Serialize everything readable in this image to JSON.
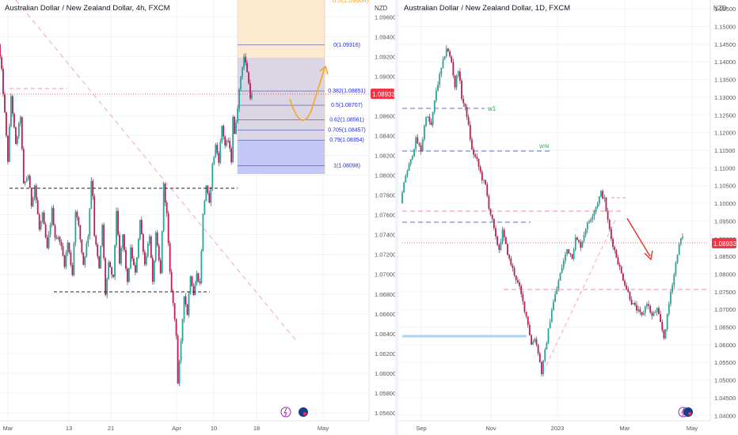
{
  "colors": {
    "up": "#26a69a",
    "down": "#c2185b",
    "wick": "#333333",
    "price_line": "#f23645",
    "fib_line": "#3f51b5",
    "fib_label": "#1e2bd0",
    "orange": "#f5a623",
    "green_label": "#26a65b",
    "zone_blue": "#b9befa",
    "zone_gray": "#d6d0dd",
    "zone_orange": "#fde9cf",
    "red_arrow": "#e53935"
  },
  "left_panel": {
    "title": "Australian Dollar / New Zealand Dollar, 4h, FXCM",
    "currency": "NZD",
    "price_tag": "1.08933",
    "y_ticks": [
      "1.09600",
      "1.09400",
      "1.09200",
      "1.09000",
      "1.08800",
      "1.08600",
      "1.08400",
      "1.08200",
      "1.08000",
      "1.07800",
      "1.07600",
      "1.07400",
      "1.07200",
      "1.07000",
      "1.06800",
      "1.06600",
      "1.06400",
      "1.06200",
      "1.06000",
      "1.05800",
      "1.05600"
    ],
    "x_ticks": [
      "Mar",
      "13",
      "21",
      "Apr",
      "10",
      "18",
      "May"
    ],
    "fib_labels": [
      "0(1.09316)",
      "0.382(1.08851)",
      "0.5(1.08707)",
      "0.62(1.08561)",
      "0.705(1.08457)",
      "0.79(1.08354)",
      "1(1.08098)"
    ],
    "icons": [
      "lightning-icon",
      "flag-icon"
    ]
  },
  "right_panel": {
    "title": "Australian Dollar / New Zealand Dollar, 1D, FXCM",
    "currency": "NZD",
    "price_tag": "1.08933",
    "y_ticks": [
      "1.15500",
      "1.15000",
      "1.14500",
      "1.14000",
      "1.13500",
      "1.13000",
      "1.12500",
      "1.12000",
      "1.11500",
      "1.11000",
      "1.10500",
      "1.10000",
      "1.09500",
      "1.09000",
      "1.08500",
      "1.08000",
      "1.07500",
      "1.07000",
      "1.06500",
      "1.06000",
      "1.05500",
      "1.05000",
      "1.04500",
      "1.04000"
    ],
    "x_ticks": [
      "Sep",
      "Nov",
      "2023",
      "Mar",
      "May"
    ],
    "annotations": [
      "w1",
      "W/M"
    ],
    "icons": [
      "lightning-icon",
      "flag-icon"
    ]
  },
  "chart_data": [
    {
      "type": "candlestick",
      "title": "Australian Dollar / New Zealand Dollar, 4h, FXCM",
      "ylabel": "NZD",
      "ylim": [
        1.0552,
        1.0977
      ],
      "x_ticks": [
        "Mar",
        "13",
        "21",
        "Apr",
        "10",
        "18",
        "May"
      ],
      "last_price": 1.08933,
      "path_points": [
        [
          0,
          1.0932
        ],
        [
          4,
          1.0905
        ],
        [
          8,
          1.0862
        ],
        [
          12,
          1.0815
        ],
        [
          16,
          1.088
        ],
        [
          22,
          1.083
        ],
        [
          28,
          1.086
        ],
        [
          32,
          1.079
        ],
        [
          38,
          1.08
        ],
        [
          42,
          1.077
        ],
        [
          46,
          1.079
        ],
        [
          52,
          1.0745
        ],
        [
          56,
          1.076
        ],
        [
          62,
          1.0725
        ],
        [
          68,
          1.0765
        ],
        [
          72,
          1.0738
        ],
        [
          78,
          1.0735
        ],
        [
          84,
          1.071
        ],
        [
          88,
          1.0732
        ],
        [
          94,
          1.07
        ],
        [
          98,
          1.0765
        ],
        [
          102,
          1.0748
        ],
        [
          108,
          1.071
        ],
        [
          114,
          1.074
        ],
        [
          118,
          1.0795
        ],
        [
          120,
          1.078
        ],
        [
          122,
          1.074
        ],
        [
          128,
          1.0705
        ],
        [
          132,
          1.075
        ],
        [
          136,
          1.068
        ],
        [
          140,
          1.071
        ],
        [
          146,
          1.0695
        ],
        [
          150,
          1.0765
        ],
        [
          154,
          1.071
        ],
        [
          158,
          1.074
        ],
        [
          164,
          1.069
        ],
        [
          168,
          1.0725
        ],
        [
          174,
          1.07
        ],
        [
          180,
          1.0755
        ],
        [
          186,
          1.071
        ],
        [
          192,
          1.074
        ],
        [
          196,
          1.069
        ],
        [
          200,
          1.074
        ],
        [
          206,
          1.07
        ],
        [
          210,
          1.079
        ],
        [
          214,
          1.076
        ],
        [
          218,
          1.07
        ],
        [
          222,
          1.067
        ],
        [
          226,
          1.064
        ],
        [
          228,
          1.059
        ],
        [
          232,
          1.063
        ],
        [
          236,
          1.068
        ],
        [
          240,
          1.066
        ],
        [
          244,
          1.07
        ],
        [
          248,
          1.068
        ],
        [
          252,
          1.07
        ],
        [
          256,
          1.069
        ],
        [
          260,
          1.076
        ],
        [
          264,
          1.079
        ],
        [
          268,
          1.077
        ],
        [
          272,
          1.081
        ],
        [
          276,
          1.083
        ],
        [
          280,
          1.0815
        ],
        [
          284,
          1.085
        ],
        [
          288,
          1.083
        ],
        [
          292,
          1.0835
        ],
        [
          296,
          1.0815
        ],
        [
          298,
          1.086
        ],
        [
          300,
          1.084
        ],
        [
          304,
          1.087
        ],
        [
          308,
          1.09
        ],
        [
          312,
          1.092
        ],
        [
          316,
          1.0905
        ],
        [
          320,
          1.088
        ]
      ],
      "levels": [
        {
          "label": "0",
          "value": 1.09316
        },
        {
          "label": "0.382",
          "value": 1.08851
        },
        {
          "label": "0.5",
          "value": 1.08707
        },
        {
          "label": "0.62",
          "value": 1.08561
        },
        {
          "label": "0.705",
          "value": 1.08457
        },
        {
          "label": "0.79",
          "value": 1.08354
        },
        {
          "label": "1",
          "value": 1.08098
        }
      ],
      "support_levels": [
        1.0796,
        1.0685
      ],
      "grid": true
    },
    {
      "type": "candlestick",
      "title": "Australian Dollar / New Zealand Dollar, 1D, FXCM",
      "ylabel": "NZD",
      "ylim": [
        1.0385,
        1.1575
      ],
      "x_ticks": [
        "Sep",
        "Nov",
        "2023",
        "Mar",
        "May"
      ],
      "last_price": 1.08933,
      "path_points": [
        [
          0,
          1.1
        ],
        [
          6,
          1.108
        ],
        [
          12,
          1.112
        ],
        [
          18,
          1.118
        ],
        [
          24,
          1.115
        ],
        [
          30,
          1.125
        ],
        [
          36,
          1.122
        ],
        [
          42,
          1.132
        ],
        [
          48,
          1.138
        ],
        [
          54,
          1.144
        ],
        [
          60,
          1.14
        ],
        [
          64,
          1.133
        ],
        [
          68,
          1.138
        ],
        [
          72,
          1.13
        ],
        [
          78,
          1.125
        ],
        [
          84,
          1.115
        ],
        [
          90,
          1.112
        ],
        [
          96,
          1.107
        ],
        [
          100,
          1.105
        ],
        [
          104,
          1.099
        ],
        [
          108,
          1.095
        ],
        [
          112,
          1.09
        ],
        [
          116,
          1.087
        ],
        [
          120,
          1.092
        ],
        [
          124,
          1.088
        ],
        [
          128,
          1.084
        ],
        [
          134,
          1.08
        ],
        [
          140,
          1.076
        ],
        [
          146,
          1.07
        ],
        [
          150,
          1.066
        ],
        [
          154,
          1.06
        ],
        [
          158,
          1.062
        ],
        [
          162,
          1.058
        ],
        [
          166,
          1.052
        ],
        [
          170,
          1.058
        ],
        [
          174,
          1.064
        ],
        [
          178,
          1.07
        ],
        [
          184,
          1.076
        ],
        [
          190,
          1.082
        ],
        [
          196,
          1.087
        ],
        [
          202,
          1.085
        ],
        [
          206,
          1.09
        ],
        [
          212,
          1.088
        ],
        [
          218,
          1.093
        ],
        [
          224,
          1.096
        ],
        [
          230,
          1.099
        ],
        [
          236,
          1.103
        ],
        [
          240,
          1.101
        ],
        [
          244,
          1.095
        ],
        [
          248,
          1.09
        ],
        [
          254,
          1.085
        ],
        [
          260,
          1.08
        ],
        [
          266,
          1.076
        ],
        [
          272,
          1.072
        ],
        [
          278,
          1.07
        ],
        [
          284,
          1.068
        ],
        [
          290,
          1.072
        ],
        [
          296,
          1.068
        ],
        [
          302,
          1.07
        ],
        [
          306,
          1.066
        ],
        [
          310,
          1.062
        ],
        [
          314,
          1.068
        ],
        [
          318,
          1.075
        ],
        [
          322,
          1.08
        ],
        [
          326,
          1.086
        ],
        [
          330,
          1.09
        ]
      ],
      "levels_dashed": [
        1.1298,
        1.1201,
        1.0983,
        1.0958,
        1.0896,
        1.0749
      ],
      "support_zone": 1.0628,
      "annotations": [
        "w1",
        "W/M"
      ],
      "grid": true
    }
  ]
}
